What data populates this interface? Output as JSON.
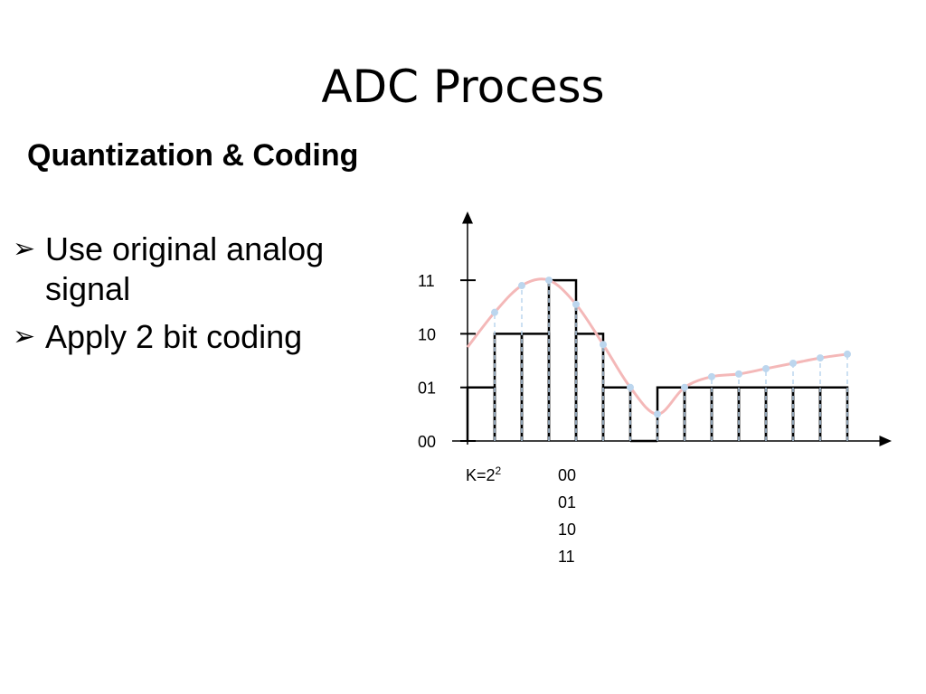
{
  "title": "ADC Process",
  "subtitle": "Quantization & Coding",
  "bullets": [
    {
      "marker": "➢",
      "text": "Use original analog signal"
    },
    {
      "marker": "➢",
      "text": "Apply 2 bit coding"
    }
  ],
  "colors": {
    "analog_curve": "#f4b8b8",
    "sample_point": "#bcd6ee",
    "quantized_bar": "#000000"
  },
  "chart_data": {
    "type": "bar",
    "y_levels": [
      "00",
      "01",
      "10",
      "11"
    ],
    "ylim": [
      0,
      3
    ],
    "sample_count": 14,
    "analog_samples": [
      2.4,
      2.9,
      3.0,
      2.55,
      1.8,
      1.0,
      0.5,
      1.0,
      1.2,
      1.25,
      1.35,
      1.45,
      1.55,
      1.62
    ],
    "quantized_values": [
      1,
      2,
      2,
      3,
      2,
      1,
      0,
      1,
      1,
      1,
      1,
      1,
      1,
      1
    ],
    "k_label_base": "K=2",
    "k_label_exp": "2",
    "code_list": [
      "00",
      "01",
      "10",
      "11"
    ]
  }
}
